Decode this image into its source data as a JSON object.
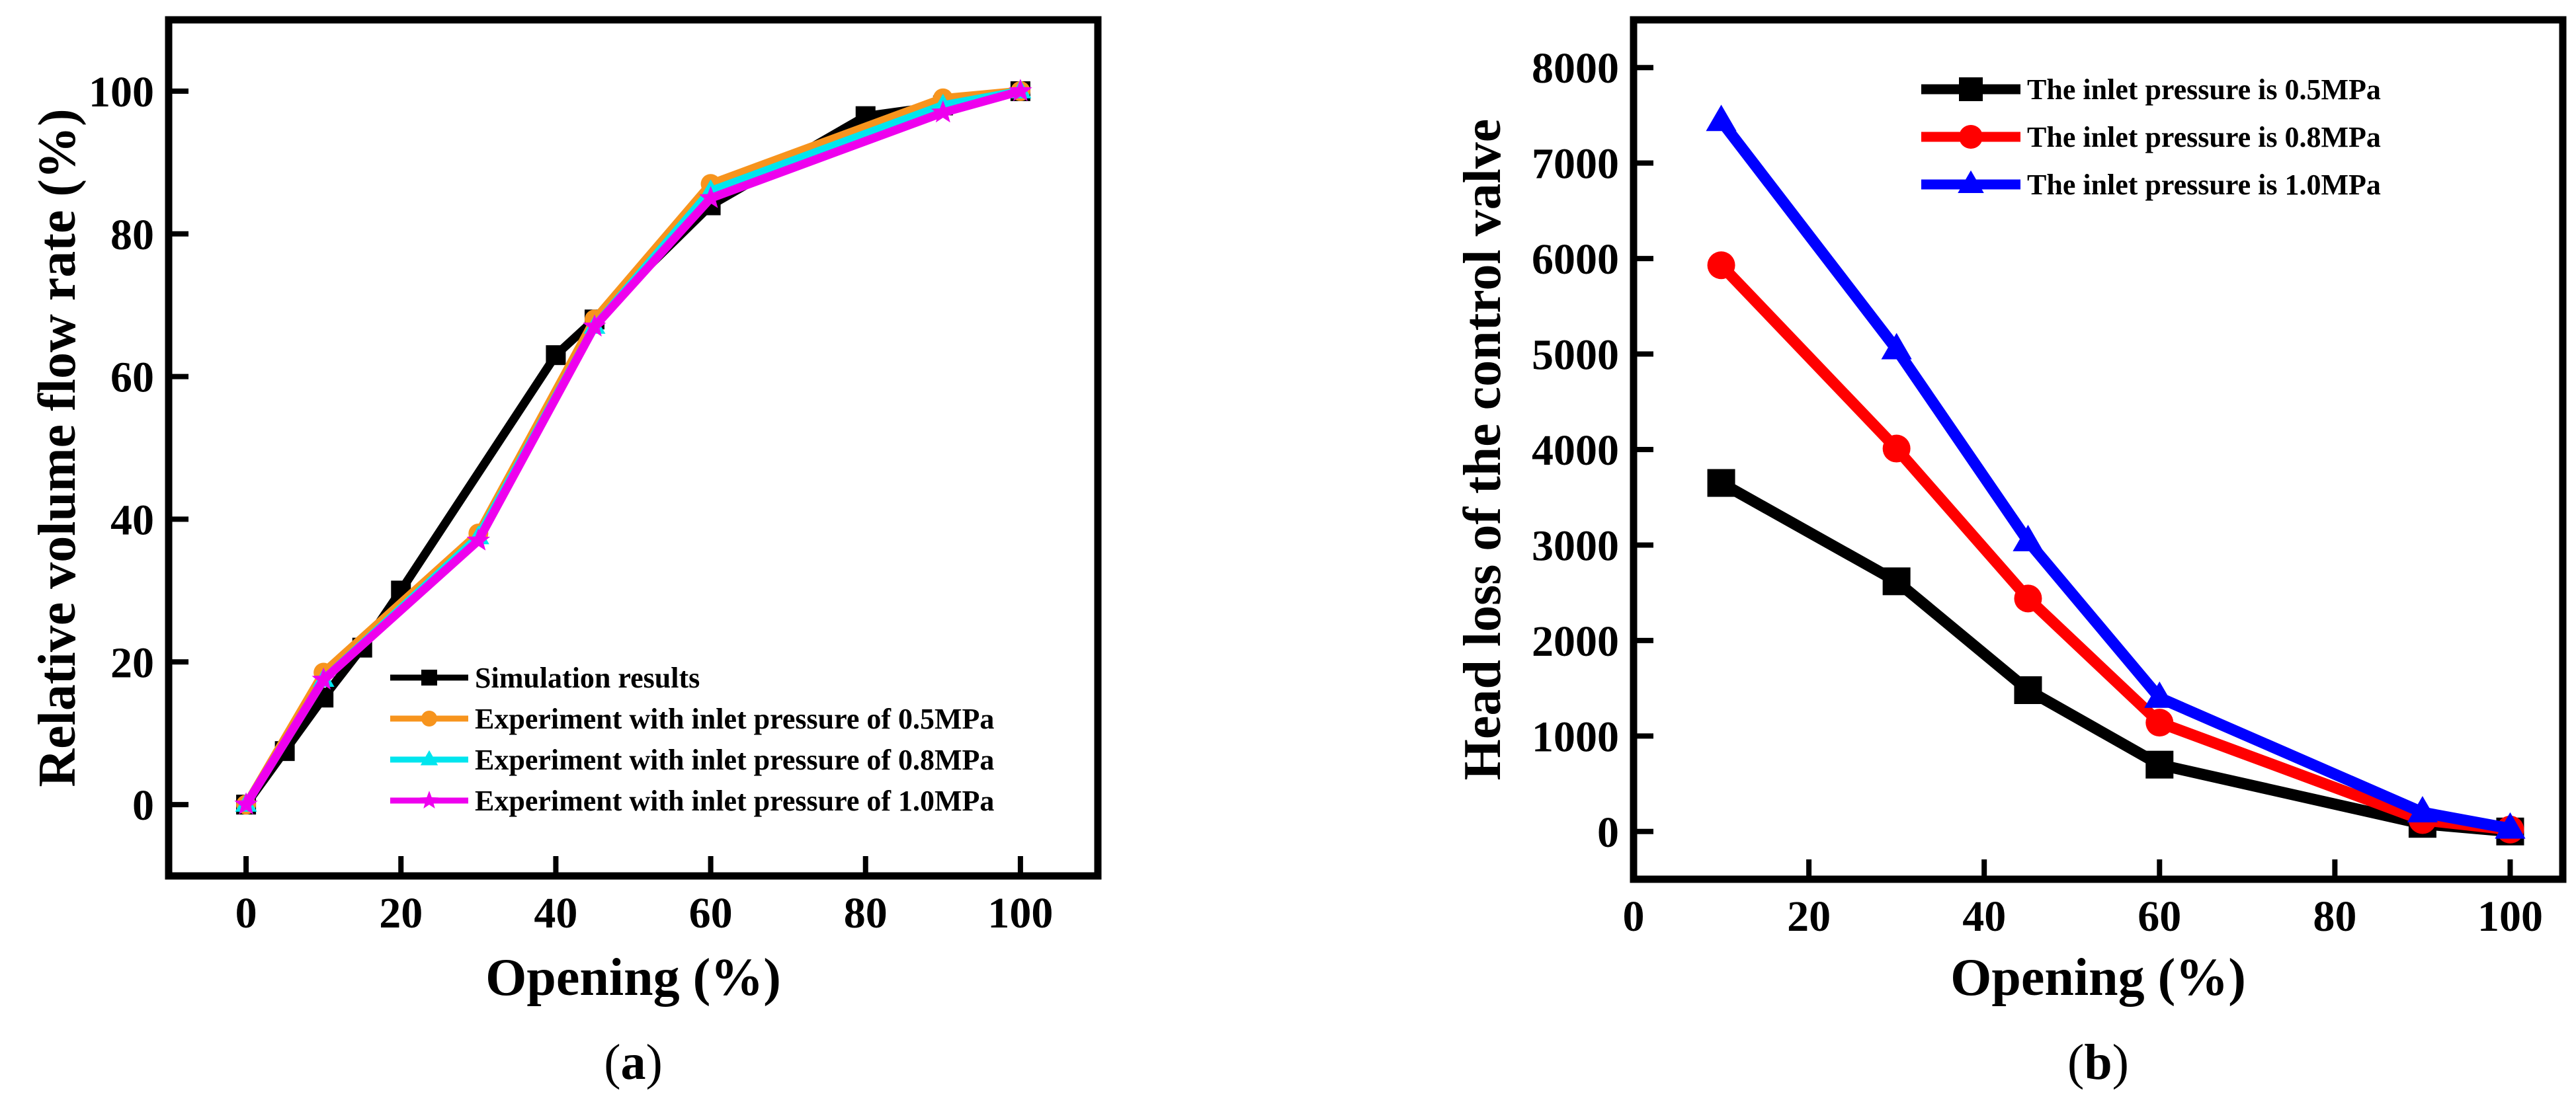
{
  "chart_data": [
    {
      "type": "line",
      "panel_label": "a",
      "xlabel": "Opening (%)",
      "ylabel": "Relative volume flow rate (%)",
      "xlim": [
        -10,
        110
      ],
      "ylim": [
        -10,
        110
      ],
      "xticks": [
        0,
        20,
        40,
        60,
        80,
        100
      ],
      "yticks": [
        0,
        20,
        40,
        60,
        80,
        100
      ],
      "legend_position": "bottom-right",
      "series": [
        {
          "name": "Simulation results",
          "color": "#000000",
          "marker": "square",
          "x": [
            0,
            5,
            10,
            15,
            20,
            40,
            45,
            60,
            80,
            90,
            100
          ],
          "y": [
            0,
            7.5,
            15,
            22,
            30,
            63,
            68,
            84,
            96.5,
            98,
            100
          ]
        },
        {
          "name": "Experiment with inlet pressure of 0.5MPa",
          "color": "#f7941d",
          "marker": "circle",
          "x": [
            0,
            10,
            30,
            45,
            60,
            90,
            100
          ],
          "y": [
            0,
            18.5,
            38,
            68,
            87,
            99,
            100
          ]
        },
        {
          "name": "Experiment with inlet pressure of 0.8MPa",
          "color": "#00e5ee",
          "marker": "triangle",
          "x": [
            0,
            10,
            30,
            45,
            60,
            90,
            100
          ],
          "y": [
            0,
            17.5,
            37.5,
            67,
            86,
            98,
            100
          ]
        },
        {
          "name": "Experiment with inlet pressure of 1.0MPa",
          "color": "#ee00ee",
          "marker": "star",
          "x": [
            0,
            10,
            30,
            45,
            60,
            90,
            100
          ],
          "y": [
            0,
            17.5,
            37,
            67,
            85,
            97,
            100
          ]
        }
      ]
    },
    {
      "type": "line",
      "panel_label": "b",
      "xlabel": "Opening (%)",
      "ylabel": "Head loss of the control valve",
      "xlim": [
        0,
        106
      ],
      "ylim": [
        -500,
        8500
      ],
      "xticks": [
        0,
        20,
        40,
        60,
        80,
        100
      ],
      "yticks": [
        0,
        1000,
        2000,
        3000,
        4000,
        5000,
        6000,
        7000,
        8000
      ],
      "legend_position": "top-right",
      "series": [
        {
          "name": "The inlet pressure is 0.5MPa",
          "color": "#000000",
          "marker": "square",
          "x": [
            10,
            30,
            45,
            60,
            90,
            100
          ],
          "y": [
            3650,
            2620,
            1480,
            700,
            80,
            0
          ]
        },
        {
          "name": "The inlet pressure is 0.8MPa",
          "color": "#ff0000",
          "marker": "circle",
          "x": [
            10,
            30,
            45,
            60,
            90,
            100
          ],
          "y": [
            5930,
            4010,
            2440,
            1140,
            120,
            20
          ]
        },
        {
          "name": "The inlet pressure is 1.0MPa",
          "color": "#0000ff",
          "marker": "triangle",
          "x": [
            10,
            30,
            45,
            60,
            90,
            100
          ],
          "y": [
            7440,
            5050,
            3040,
            1400,
            200,
            30
          ]
        }
      ]
    }
  ]
}
